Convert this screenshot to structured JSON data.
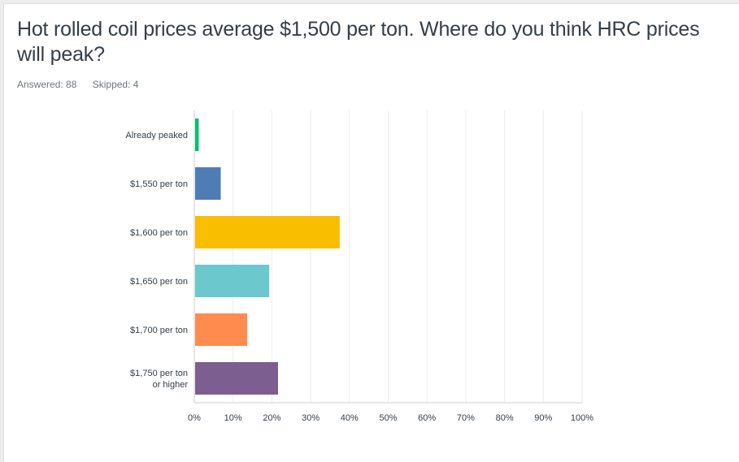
{
  "question": {
    "title": "Hot rolled coil prices average $1,500 per ton. Where do you think HRC prices will peak?",
    "answered": "Answered: 88",
    "skipped": "Skipped: 4"
  },
  "chart_data": {
    "type": "bar",
    "orientation": "horizontal",
    "categories": [
      "Already peaked",
      "$1,550 per ton",
      "$1,600 per ton",
      "$1,650 per ton",
      "$1,700 per ton",
      "$1,750 per ton or higher"
    ],
    "category_lines": [
      [
        "Already peaked"
      ],
      [
        "$1,550 per ton"
      ],
      [
        "$1,600 per ton"
      ],
      [
        "$1,650 per ton"
      ],
      [
        "$1,700 per ton"
      ],
      [
        "$1,750 per ton",
        "or higher"
      ]
    ],
    "values": [
      1.14,
      6.82,
      37.5,
      19.32,
      13.64,
      21.59
    ],
    "colors": [
      "#00bf6f",
      "#507cb6",
      "#f9be00",
      "#6bc8cd",
      "#ff8b4f",
      "#7d5e90"
    ],
    "xlim": [
      0,
      100
    ],
    "xticks": [
      "0%",
      "10%",
      "20%",
      "30%",
      "40%",
      "50%",
      "60%",
      "70%",
      "80%",
      "90%",
      "100%"
    ],
    "grid": true,
    "xlabel": "",
    "ylabel": ""
  }
}
